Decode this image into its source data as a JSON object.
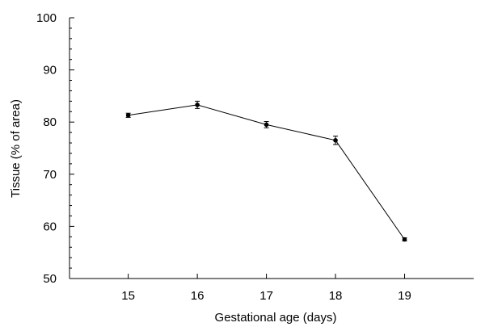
{
  "chart_data": {
    "type": "line",
    "title": "",
    "xlabel": "Gestational age (days)",
    "ylabel": "Tissue (% of area)",
    "xlim": [
      14.15,
      20.0
    ],
    "ylim": [
      50,
      100
    ],
    "x_ticks": [
      15,
      16,
      17,
      18,
      19
    ],
    "y_ticks": [
      50,
      60,
      70,
      80,
      90,
      100
    ],
    "y_minor_step": 2,
    "grid": false,
    "series": [
      {
        "x": [
          15,
          16,
          17,
          18,
          19
        ],
        "values": [
          81.3,
          83.3,
          79.5,
          76.5,
          57.5
        ],
        "error": [
          0.4,
          0.7,
          0.6,
          0.8,
          0.3
        ]
      }
    ]
  }
}
